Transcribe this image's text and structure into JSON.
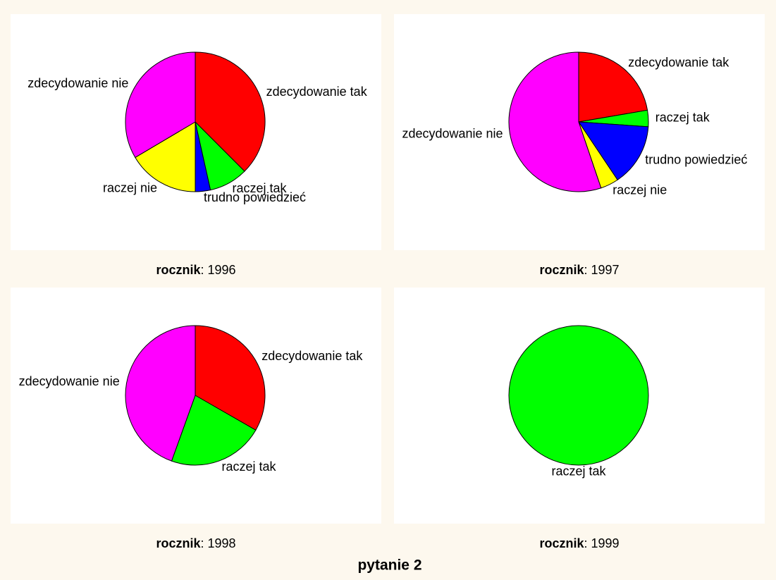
{
  "title": "pytanie 2",
  "chart_data": [
    {
      "type": "pie",
      "facet_label": "rocznik",
      "facet_value": "1996",
      "categories": [
        "zdecydowanie tak",
        "raczej tak",
        "trudno powiedzieć",
        "raczej nie",
        "zdecydowanie nie"
      ],
      "values": [
        37.5,
        9,
        3.5,
        16.5,
        33.5
      ],
      "colors": [
        "#ff0000",
        "#00ff00",
        "#0000ff",
        "#ffff00",
        "#ff00ff"
      ]
    },
    {
      "type": "pie",
      "facet_label": "rocznik",
      "facet_value": "1997",
      "categories": [
        "zdecydowanie tak",
        "raczej tak",
        "trudno powiedzieć",
        "raczej nie",
        "zdecydowanie nie"
      ],
      "values": [
        22.3,
        3.8,
        14.5,
        4.2,
        55.2
      ],
      "colors": [
        "#ff0000",
        "#00ff00",
        "#0000ff",
        "#ffff00",
        "#ff00ff"
      ]
    },
    {
      "type": "pie",
      "facet_label": "rocznik",
      "facet_value": "1998",
      "categories": [
        "zdecydowanie tak",
        "raczej tak",
        "zdecydowanie nie"
      ],
      "values": [
        33.3,
        22.2,
        44.5
      ],
      "colors": [
        "#ff0000",
        "#00ff00",
        "#ff00ff"
      ]
    },
    {
      "type": "pie",
      "facet_label": "rocznik",
      "facet_value": "1999",
      "categories": [
        "raczej tak"
      ],
      "values": [
        100
      ],
      "colors": [
        "#00ff00"
      ]
    }
  ]
}
